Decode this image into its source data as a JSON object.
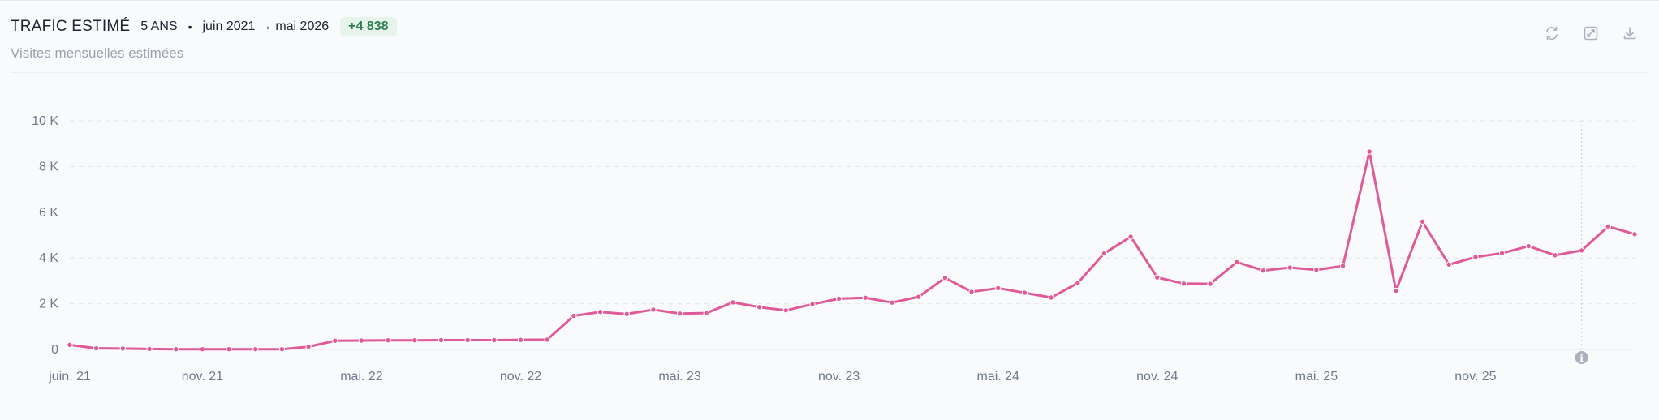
{
  "header": {
    "title": "TRAFIC ESTIMÉ",
    "period": "5 ANS",
    "separator": "•",
    "range": "juin 2021 → mai 2026",
    "delta": "+4 838",
    "subtitle": "Visites mensuelles estimées"
  },
  "tools": {
    "refresh_icon": "refresh-icon",
    "expand_icon": "expand-icon",
    "download_icon": "download-icon"
  },
  "colors": {
    "line": "#e05a97",
    "delta_text": "#2e7d4f",
    "delta_bg": "#e6f4ec",
    "grid": "#e2e5ea",
    "info_marker": "#aab1bd"
  },
  "chart_data": {
    "type": "line",
    "title": "",
    "xlabel": "",
    "ylabel": "",
    "ylim": [
      0,
      10000
    ],
    "yticks": [
      0,
      2000,
      4000,
      6000,
      8000,
      10000
    ],
    "ytick_labels": [
      "0",
      "2 K",
      "4 K",
      "6 K",
      "8 K",
      "10 K"
    ],
    "grid": true,
    "legend": "none",
    "x_start": "2021-06",
    "x_end": "2026-05",
    "xtick_labels": [
      {
        "label": "juin. 21",
        "month": "2021-06"
      },
      {
        "label": "nov. 21",
        "month": "2021-11"
      },
      {
        "label": "mai. 22",
        "month": "2022-05"
      },
      {
        "label": "nov. 22",
        "month": "2022-11"
      },
      {
        "label": "mai. 23",
        "month": "2023-05"
      },
      {
        "label": "nov. 23",
        "month": "2023-11"
      },
      {
        "label": "mai. 24",
        "month": "2024-05"
      },
      {
        "label": "nov. 24",
        "month": "2024-11"
      },
      {
        "label": "mai. 25",
        "month": "2025-05"
      },
      {
        "label": "nov. 25",
        "month": "2025-11"
      }
    ],
    "marker_month": "2026-03",
    "series": [
      {
        "x": [
          "2021-06",
          "2021-07",
          "2021-08",
          "2021-09",
          "2021-10",
          "2021-11",
          "2021-12",
          "2022-01",
          "2022-02",
          "2022-03",
          "2022-04",
          "2022-05",
          "2022-06",
          "2022-07",
          "2022-08",
          "2022-09",
          "2022-10",
          "2022-11",
          "2022-12",
          "2023-01",
          "2023-02",
          "2023-03",
          "2023-04",
          "2023-05",
          "2023-06",
          "2023-07",
          "2023-08",
          "2023-09",
          "2023-10",
          "2023-11",
          "2023-12",
          "2024-01",
          "2024-02",
          "2024-03",
          "2024-04",
          "2024-05",
          "2024-06",
          "2024-07",
          "2024-08",
          "2024-09",
          "2024-10",
          "2024-11",
          "2024-12",
          "2025-01",
          "2025-02",
          "2025-03",
          "2025-04",
          "2025-05",
          "2025-06",
          "2025-07",
          "2025-08",
          "2025-09",
          "2025-10",
          "2025-11",
          "2025-12",
          "2026-01",
          "2026-02",
          "2026-03",
          "2026-04",
          "2026-05"
        ],
        "values": [
          200,
          50,
          40,
          20,
          10,
          10,
          10,
          10,
          10,
          120,
          380,
          390,
          400,
          400,
          410,
          410,
          410,
          420,
          430,
          1470,
          1640,
          1550,
          1740,
          1570,
          1590,
          2060,
          1850,
          1710,
          1980,
          2220,
          2260,
          2050,
          2300,
          3130,
          2520,
          2680,
          2480,
          2270,
          2900,
          4200,
          4930,
          3150,
          2880,
          2870,
          3820,
          3450,
          3580,
          3480,
          3650,
          8650,
          2570,
          5590,
          3710,
          4040,
          4210,
          4520,
          4120,
          4330,
          5380,
          5040
        ]
      }
    ]
  }
}
